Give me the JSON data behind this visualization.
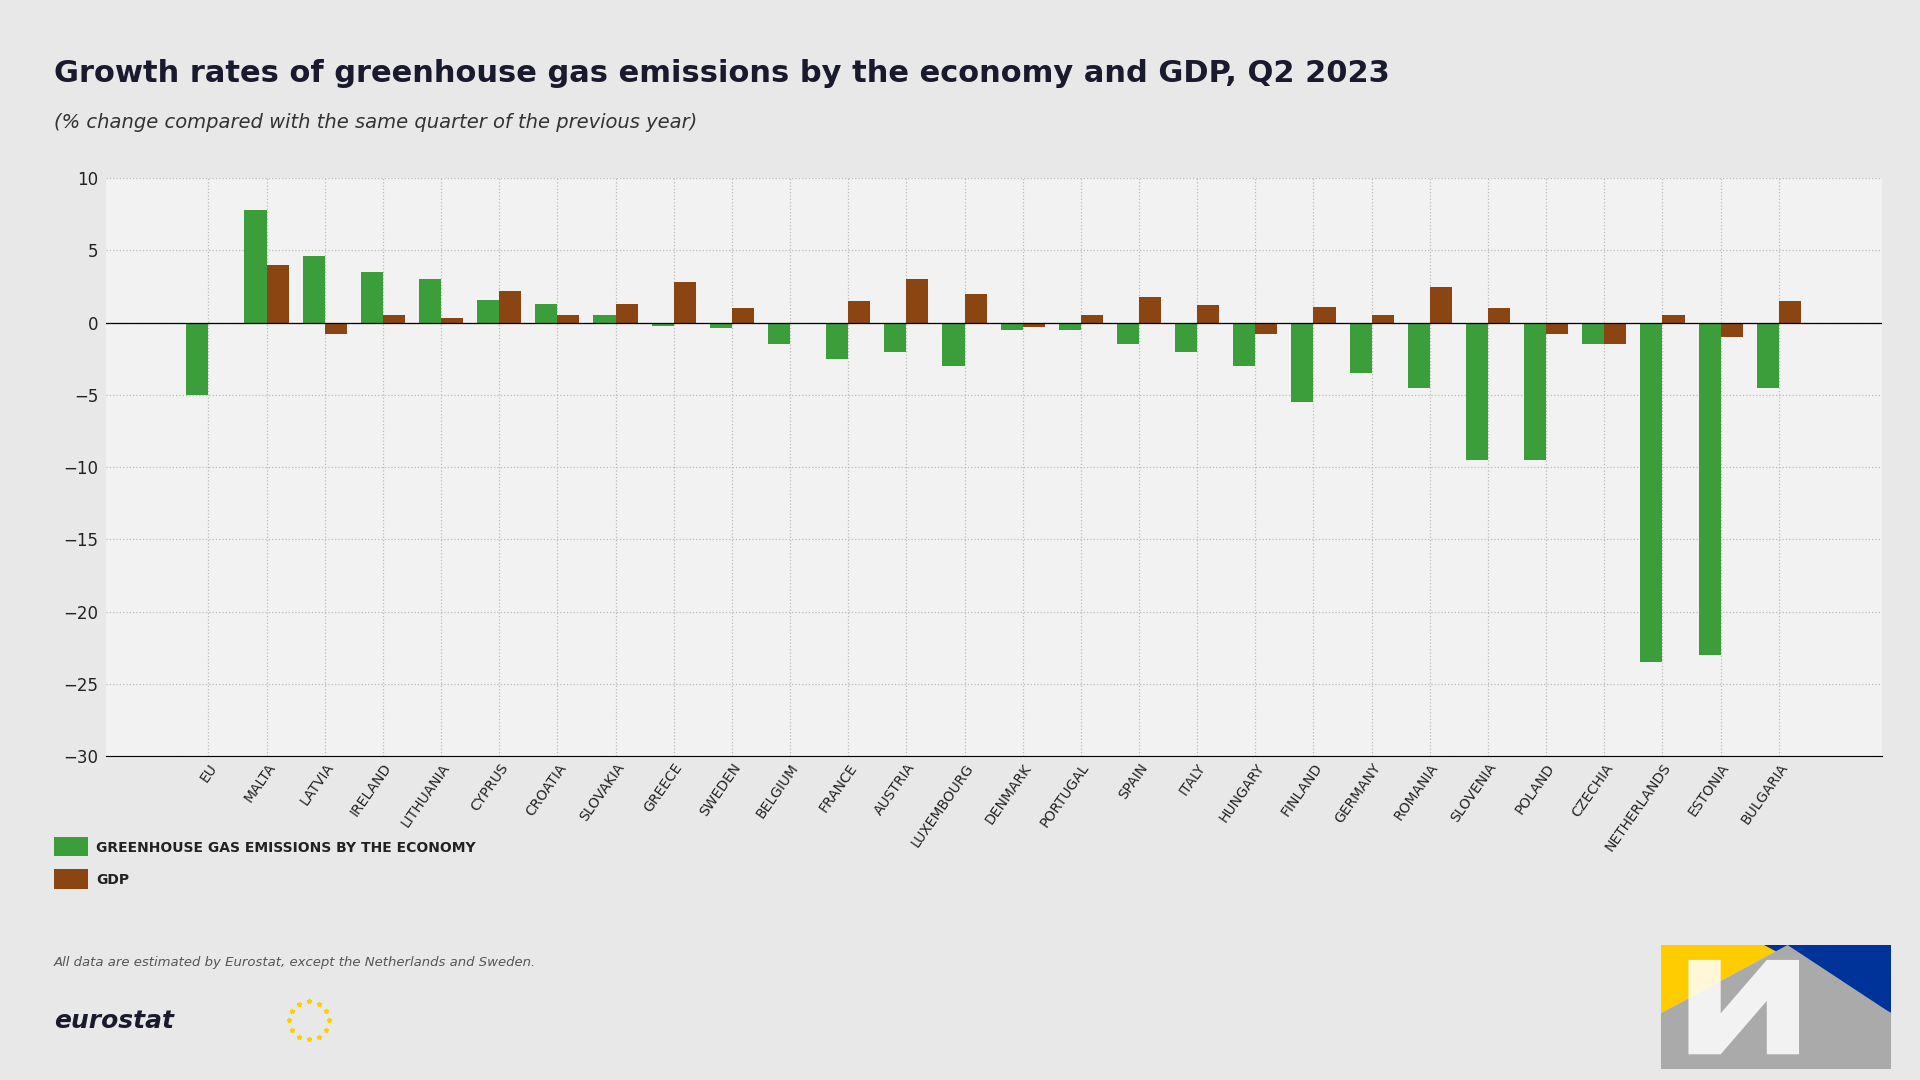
{
  "title": "Growth rates of greenhouse gas emissions by the economy and GDP, Q2 2023",
  "subtitle": "(% change compared with the same quarter of the previous year)",
  "categories": [
    "EU",
    "MALTA",
    "LATVIA",
    "IRELAND",
    "LITHUANIA",
    "CYPRUS",
    "CROATIA",
    "SLOVAKIA",
    "GREECE",
    "SWEDEN",
    "BELGIUM",
    "FRANCE",
    "AUSTRIA",
    "LUXEMBOURG",
    "DENMARK",
    "PORTUGAL",
    "SPAIN",
    "ITALY",
    "HUNGARY",
    "FINLAND",
    "GERMANY",
    "ROMANIA",
    "SLOVENIA",
    "POLAND",
    "CZECHIA",
    "NETHERLANDS",
    "ESTONIA",
    "BULGARIA"
  ],
  "ghg_values": [
    -5.0,
    7.8,
    4.6,
    3.5,
    3.0,
    1.6,
    1.3,
    0.5,
    -0.2,
    -0.4,
    -1.5,
    -2.5,
    -2.0,
    -3.0,
    -0.5,
    -0.5,
    -1.5,
    -2.0,
    -3.0,
    -5.5,
    -3.5,
    -4.5,
    -9.5,
    -9.5,
    -1.5,
    -23.5,
    -23.0,
    -4.5
  ],
  "gdp_values": [
    null,
    4.0,
    -0.8,
    0.5,
    0.3,
    2.2,
    0.5,
    1.3,
    2.8,
    1.0,
    0.0,
    1.5,
    3.0,
    2.0,
    -0.3,
    0.5,
    1.8,
    1.2,
    -0.8,
    1.1,
    0.5,
    2.5,
    1.0,
    -0.8,
    -1.5,
    0.5,
    -1.0,
    1.5
  ],
  "ghg_color": "#3b9e3b",
  "gdp_color": "#8B4513",
  "background_color": "#e8e8e8",
  "plot_background": "#f2f2f2",
  "ylim": [
    -30,
    10
  ],
  "yticks": [
    10,
    5,
    0,
    -5,
    -10,
    -15,
    -20,
    -25,
    -30
  ],
  "legend_ghg": "GREENHOUSE GAS EMISSIONS BY THE ECONOMY",
  "legend_gdp": "GDP",
  "footnote": "All data are estimated by Eurostat, except the Netherlands and Sweden.",
  "title_fontsize": 22,
  "subtitle_fontsize": 14
}
